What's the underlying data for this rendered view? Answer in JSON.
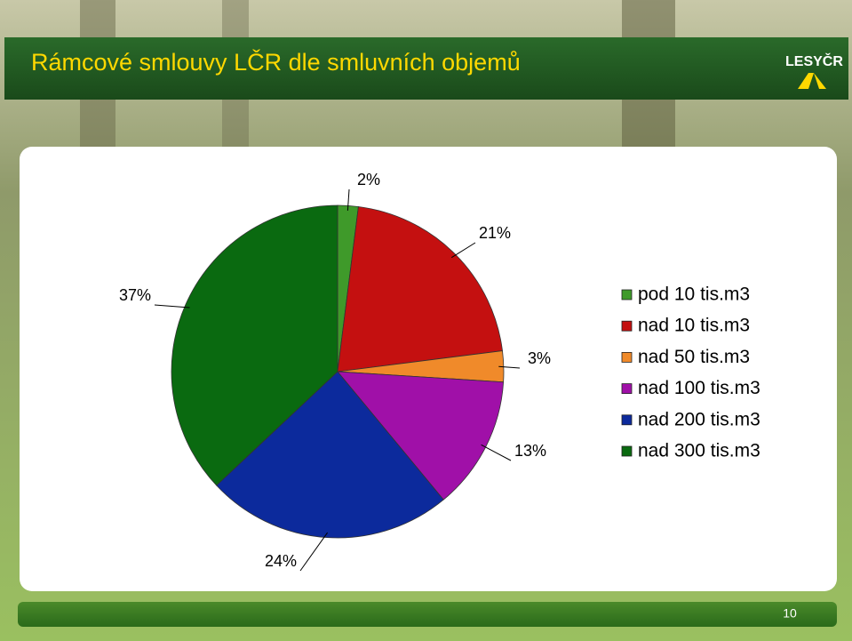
{
  "slide": {
    "title": "Rámcové smlouvy LČR dle smluvních objemů",
    "logo": "LESYČR",
    "page": "10"
  },
  "chart_data": {
    "type": "pie",
    "categories": [
      "pod 10 tis.m3",
      "nad 10 tis.m3",
      "nad 50 tis.m3",
      "nad 100 tis.m3",
      "nad 200 tis.m3",
      "nad 300 tis.m3"
    ],
    "values": [
      2,
      21,
      3,
      13,
      24,
      37
    ],
    "value_labels": [
      "2%",
      "21%",
      "3%",
      "13%",
      "24%",
      "37%"
    ],
    "colors": [
      "#3f9a2a",
      "#c41010",
      "#f08a2a",
      "#a010a8",
      "#0c2a9c",
      "#0a6a10"
    ],
    "legend": "right"
  }
}
